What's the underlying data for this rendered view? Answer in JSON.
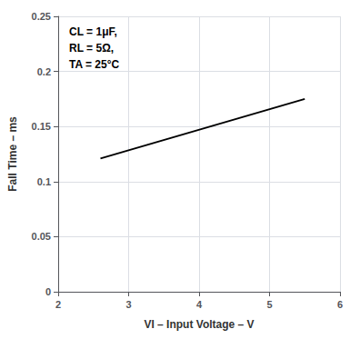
{
  "chart_data": {
    "type": "line",
    "xlabel": "VI – Input Voltage – V",
    "ylabel": "Fall Time – ms",
    "annotation": "CL = 1μF,\nRL = 5Ω,\nTA = 25°C",
    "x": [
      2.6,
      5.5
    ],
    "values": [
      0.121,
      0.175
    ],
    "color": "#000000",
    "xlim": [
      2,
      6
    ],
    "xticks": [
      2,
      3,
      4,
      5,
      6
    ],
    "ylim": [
      0,
      0.25
    ],
    "yticks": [
      0,
      0.05,
      0.1,
      0.15,
      0.2,
      0.25
    ],
    "grid": true
  }
}
